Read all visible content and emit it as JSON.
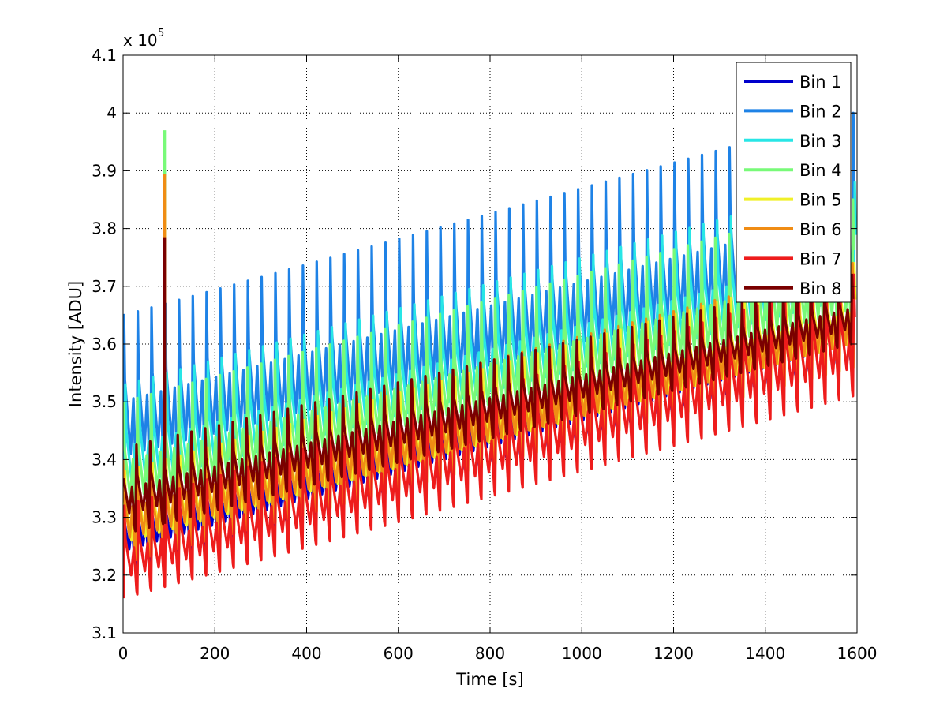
{
  "chart_data": {
    "type": "line",
    "xlabel": "Time [s]",
    "ylabel": "Intensity [ADU]",
    "y_exponent_label": "x 10",
    "y_exponent_power": "5",
    "xlim": [
      0,
      1600
    ],
    "ylim": [
      3.1,
      4.1
    ],
    "xticks": [
      "0",
      "200",
      "400",
      "600",
      "800",
      "1000",
      "1200",
      "1400",
      "1600"
    ],
    "yticks": [
      "3.1",
      "3.2",
      "3.3",
      "3.4",
      "3.5",
      "3.6",
      "3.7",
      "3.8",
      "3.9",
      "4",
      "4.1"
    ],
    "grid": true,
    "legend_position": "top-right",
    "oscillation_period_s": 30,
    "spike_time_s": 90,
    "series": [
      {
        "name": "Bin 1",
        "color": "#0000cc",
        "x": [
          0,
          1590
        ],
        "trough": [
          3.21,
          3.57
        ],
        "peak": [
          3.35,
          3.71
        ]
      },
      {
        "name": "Bin 2",
        "color": "#1e82e6",
        "x": [
          0,
          1590
        ],
        "trough": [
          3.33,
          3.63
        ],
        "peak": [
          3.65,
          4.0
        ],
        "spike_peak": 3.66
      },
      {
        "name": "Bin 3",
        "color": "#28e6e6",
        "x": [
          0,
          1590
        ],
        "trough": [
          3.3,
          3.62
        ],
        "peak": [
          3.53,
          3.88
        ],
        "spike_peak": 3.9
      },
      {
        "name": "Bin 4",
        "color": "#78fa78",
        "x": [
          0,
          1590
        ],
        "trough": [
          3.28,
          3.6
        ],
        "peak": [
          3.5,
          3.85
        ],
        "spike_peak": 3.97
      },
      {
        "name": "Bin 5",
        "color": "#f0f028",
        "x": [
          0,
          1590
        ],
        "trough": [
          3.22,
          3.56
        ],
        "peak": [
          3.38,
          3.74
        ],
        "spike_peak": 3.85
      },
      {
        "name": "Bin 6",
        "color": "#f08c14",
        "x": [
          0,
          1590
        ],
        "trough": [
          3.22,
          3.56
        ],
        "peak": [
          3.4,
          3.74
        ],
        "spike_peak": 3.895
      },
      {
        "name": "Bin 7",
        "color": "#ee1c1c",
        "x": [
          0,
          1590
        ],
        "trough": [
          3.16,
          3.51
        ],
        "peak": [
          3.32,
          3.72
        ],
        "spike_peak": 3.56
      },
      {
        "name": "Bin 8",
        "color": "#7a0000",
        "x": [
          0,
          1590
        ],
        "trough": [
          3.27,
          3.6
        ],
        "peak": [
          3.42,
          3.72
        ],
        "spike_peak": 3.785
      }
    ]
  }
}
